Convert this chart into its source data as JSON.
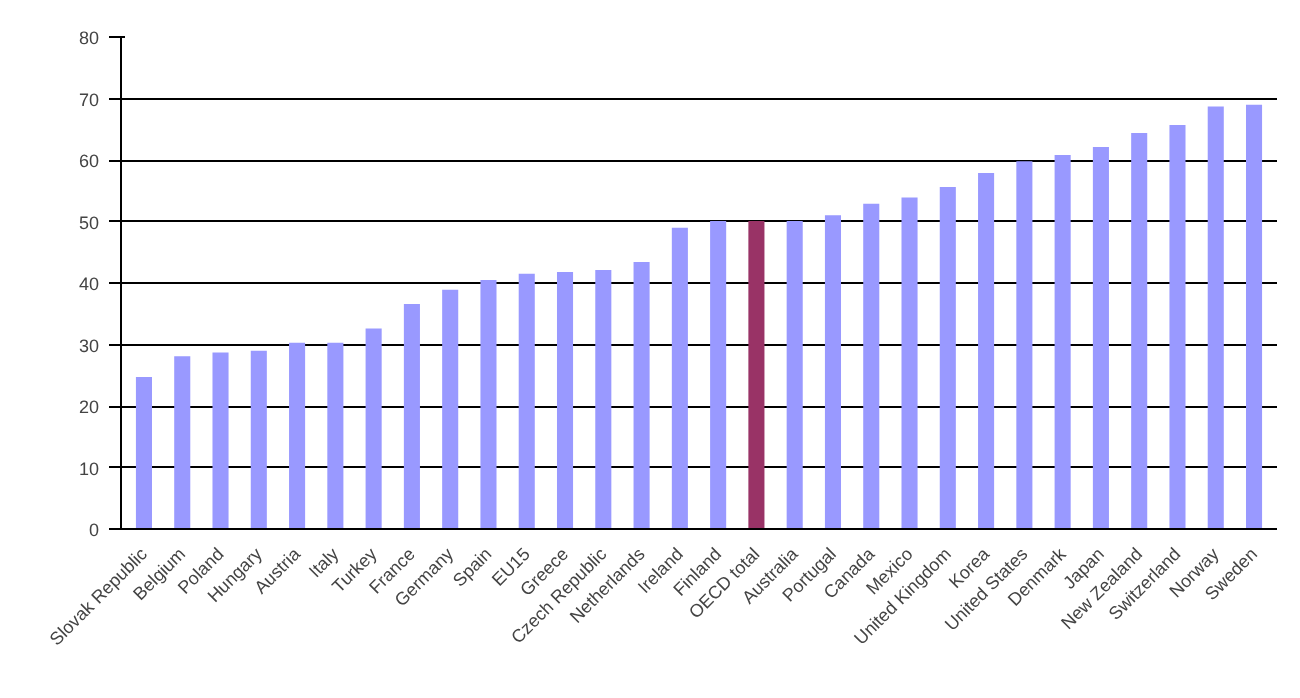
{
  "chart_data": {
    "type": "bar",
    "categories": [
      "Slovak Republic",
      "Belgium",
      "Poland",
      "Hungary",
      "Austria",
      "Italy",
      "Turkey",
      "France",
      "Germany",
      "Spain",
      "EU15",
      "Greece",
      "Czech Republic",
      "Netherlands",
      "Ireland",
      "Finland",
      "OECD total",
      "Australia",
      "Portugal",
      "Canada",
      "Mexico",
      "United Kingdom",
      "Korea",
      "United States",
      "Denmark",
      "Japan",
      "New Zealand",
      "Switzerland",
      "Norway",
      "Sweden"
    ],
    "values": [
      24.7,
      28.1,
      28.7,
      29.0,
      30.3,
      30.3,
      32.6,
      36.6,
      38.9,
      40.5,
      41.5,
      41.8,
      42.1,
      43.4,
      49.0,
      50.1,
      50.1,
      50.1,
      51.0,
      52.9,
      53.9,
      55.6,
      57.9,
      59.8,
      60.8,
      62.1,
      64.4,
      65.7,
      68.7,
      69.0
    ],
    "colors": [
      "#9999ff",
      "#9999ff",
      "#9999ff",
      "#9999ff",
      "#9999ff",
      "#9999ff",
      "#9999ff",
      "#9999ff",
      "#9999ff",
      "#9999ff",
      "#9999ff",
      "#9999ff",
      "#9999ff",
      "#9999ff",
      "#9999ff",
      "#9999ff",
      "#993366",
      "#9999ff",
      "#9999ff",
      "#9999ff",
      "#9999ff",
      "#9999ff",
      "#9999ff",
      "#9999ff",
      "#9999ff",
      "#9999ff",
      "#9999ff",
      "#9999ff",
      "#9999ff",
      "#9999ff"
    ],
    "ylim": [
      0,
      80
    ],
    "yticks": [
      0,
      10,
      20,
      30,
      40,
      50,
      60,
      70,
      80
    ],
    "grid": "y"
  }
}
